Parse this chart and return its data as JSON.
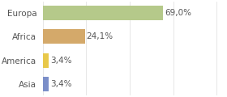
{
  "categories": [
    "Asia",
    "America",
    "Africa",
    "Europa"
  ],
  "values": [
    3.4,
    3.4,
    24.1,
    69.0
  ],
  "labels": [
    "3,4%",
    "3,4%",
    "24,1%",
    "69,0%"
  ],
  "colors": [
    "#7b8ec8",
    "#e8c84a",
    "#d4a96a",
    "#b5c98a"
  ],
  "xlim": [
    0,
    105
  ],
  "background_color": "#ffffff",
  "bar_height": 0.62,
  "label_fontsize": 7.5,
  "category_fontsize": 7.5,
  "grid_color": "#dddddd"
}
